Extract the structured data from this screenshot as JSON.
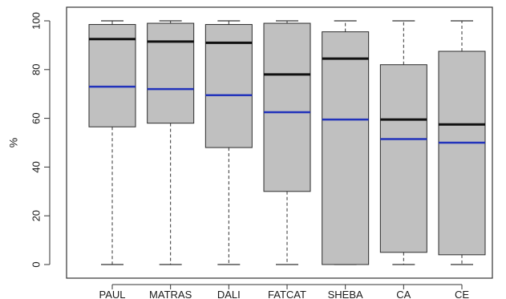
{
  "chart_data": {
    "type": "boxplot",
    "title": "",
    "xlabel": "",
    "ylabel": "%",
    "ylim": [
      0,
      100
    ],
    "y_ticks": [
      0,
      20,
      40,
      60,
      80,
      100
    ],
    "grid": false,
    "legend": "none",
    "categories": [
      "PAUL",
      "MATRAS",
      "DALI",
      "FATCAT",
      "SHEBA",
      "CA",
      "CE"
    ],
    "boxes": [
      {
        "category": "PAUL",
        "min": 0,
        "q1": 56.5,
        "median": 92.5,
        "q3": 98.5,
        "max": 100,
        "mean": 73
      },
      {
        "category": "MATRAS",
        "min": 0,
        "q1": 58,
        "median": 91.5,
        "q3": 99,
        "max": 100,
        "mean": 72
      },
      {
        "category": "DALI",
        "min": 0,
        "q1": 48,
        "median": 91,
        "q3": 98.5,
        "max": 100,
        "mean": 69.5
      },
      {
        "category": "FATCAT",
        "min": 0,
        "q1": 30,
        "median": 78,
        "q3": 99,
        "max": 100,
        "mean": 62.5
      },
      {
        "category": "SHEBA",
        "min": 0,
        "q1": 0,
        "median": 84.5,
        "q3": 95.5,
        "max": 100,
        "mean": 59.5
      },
      {
        "category": "CA",
        "min": 0,
        "q1": 5,
        "median": 59.5,
        "q3": 82,
        "max": 100,
        "mean": 51.5
      },
      {
        "category": "CE",
        "min": 0,
        "q1": 4,
        "median": 57.5,
        "q3": 87.5,
        "max": 100,
        "mean": 50
      }
    ],
    "colors": {
      "box_fill": "#c0c0c0",
      "box_stroke": "#2b2b2b",
      "median_line": "#111111",
      "mean_line": "#2233bb",
      "whisker": "#333333",
      "frame": "#333333"
    }
  }
}
